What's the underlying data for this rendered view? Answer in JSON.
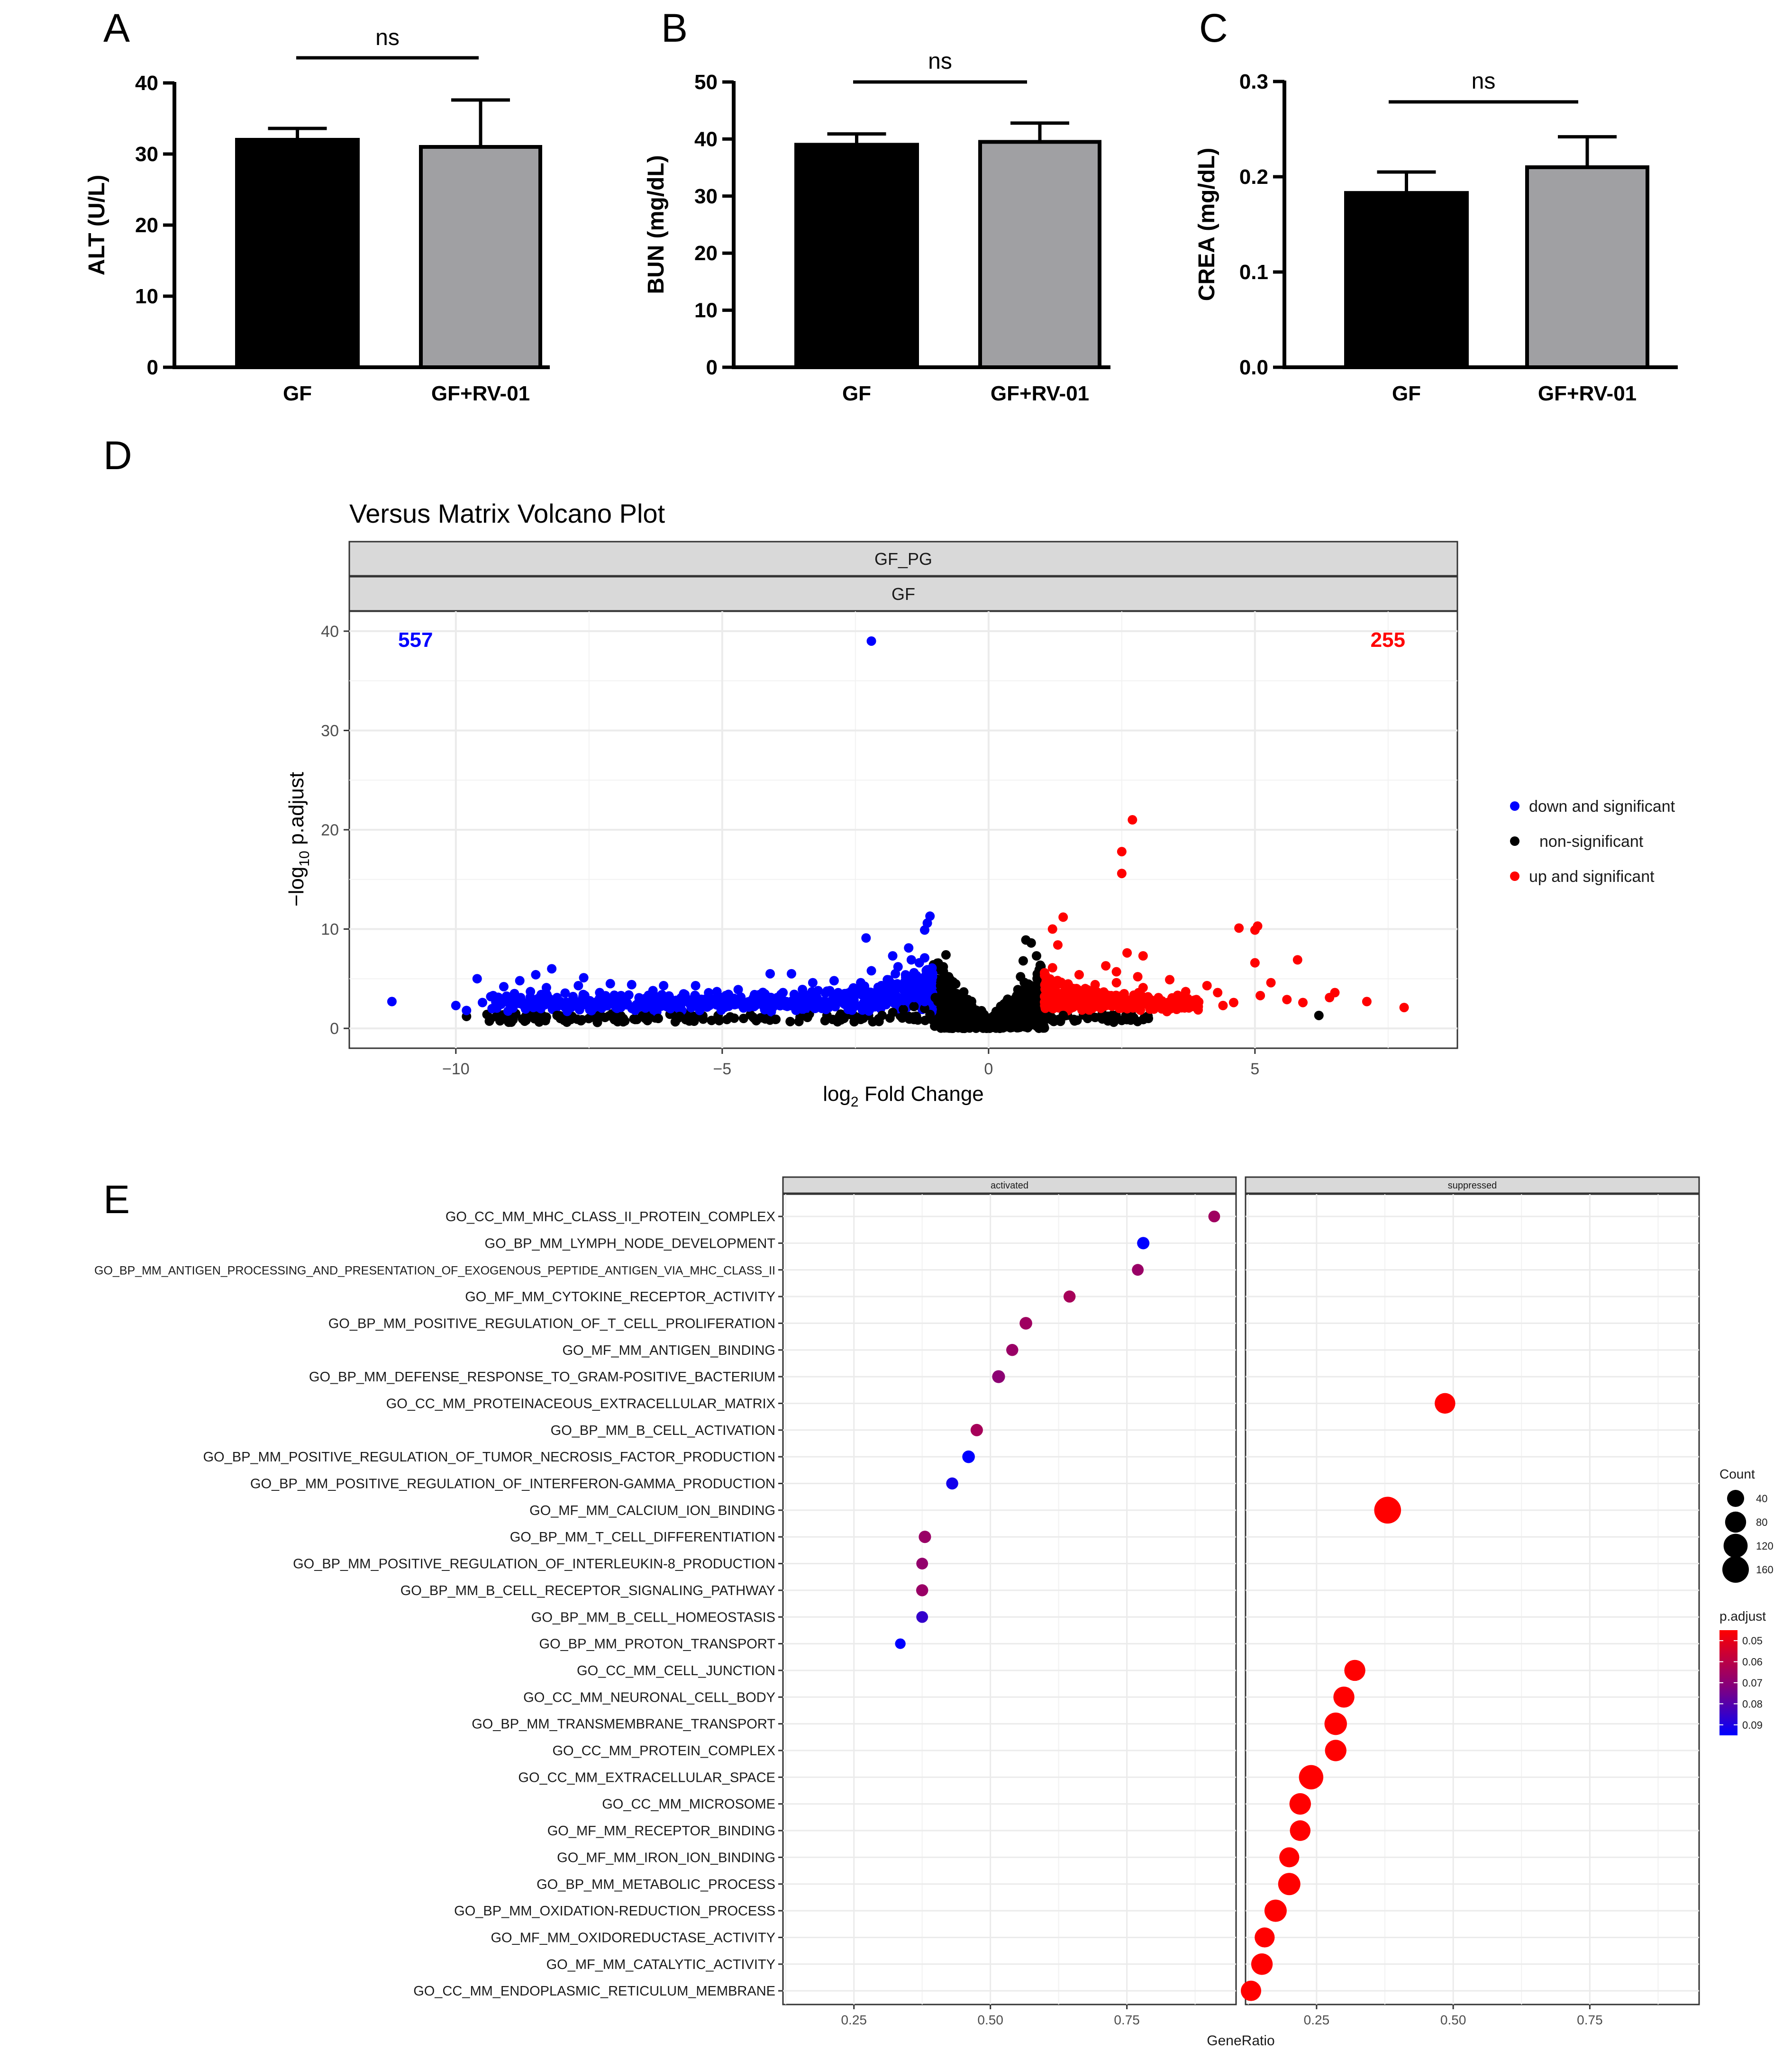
{
  "panels": {
    "A": {
      "letter": "A"
    },
    "B": {
      "letter": "B"
    },
    "C": {
      "letter": "C"
    },
    "D": {
      "letter": "D"
    },
    "E": {
      "letter": "E"
    }
  },
  "colors": {
    "bar_gf": "#000000",
    "bar_rv": "#a0a0a3",
    "down": "#0000ff",
    "nonsig": "#000000",
    "up": "#ff0000",
    "strip_fill": "#d9d9d9",
    "grid": "#ebebeb",
    "padj_low": "#ff0000",
    "padj_high": "#0000ff"
  },
  "chart_data": [
    {
      "panel": "A",
      "type": "bar",
      "categories": [
        "GF",
        "GF+RV-01"
      ],
      "values": [
        32,
        31
      ],
      "errors": [
        1.6,
        6.6
      ],
      "ylabel": "ALT (U/L)",
      "ylim": [
        0,
        40
      ],
      "yticks": [
        0,
        10,
        20,
        30,
        40
      ],
      "significance": "ns"
    },
    {
      "panel": "B",
      "type": "bar",
      "categories": [
        "GF",
        "GF+RV-01"
      ],
      "values": [
        39,
        39.5
      ],
      "errors": [
        1.9,
        3.3
      ],
      "ylabel": "BUN (mg/dL)",
      "ylim": [
        0,
        50
      ],
      "yticks": [
        0,
        10,
        20,
        30,
        40,
        50
      ],
      "significance": "ns"
    },
    {
      "panel": "C",
      "type": "bar",
      "categories": [
        "GF",
        "GF+RV-01"
      ],
      "values": [
        0.183,
        0.21
      ],
      "errors": [
        0.022,
        0.032
      ],
      "ylabel": "CREA (mg/dL)",
      "ylim": [
        0,
        0.3
      ],
      "yticks": [
        "0.0",
        "0.1",
        "0.2",
        "0.3"
      ],
      "significance": "ns"
    },
    {
      "panel": "D",
      "type": "scatter",
      "title": "Versus Matrix Volcano Plot",
      "strips": [
        "GF_PG",
        "GF"
      ],
      "xlabel_main": "log",
      "xlabel_sub": "2",
      "xlabel_rest": " Fold Change",
      "ylabel_pre": "−log",
      "ylabel_sub": "10",
      "ylabel_rest": " p.adjust",
      "xlim": [
        -12,
        8.8
      ],
      "ylim": [
        -2,
        42
      ],
      "xticks": [
        -10,
        -5,
        0,
        5
      ],
      "xtick_labels": [
        "−10",
        "−5",
        "0",
        "5"
      ],
      "yticks": [
        0,
        10,
        20,
        30,
        40
      ],
      "down_count": "557",
      "up_count": "255",
      "legend": [
        "down and significant",
        "non-significant",
        "up and significant"
      ],
      "down_points": [
        [
          -2.2,
          39
        ],
        [
          -11.2,
          2.7
        ],
        [
          -10,
          2.3
        ],
        [
          -9.8,
          1.8
        ],
        [
          -9.5,
          2.6
        ],
        [
          -9.6,
          5
        ],
        [
          -9.3,
          3.3
        ],
        [
          -9.1,
          4.2
        ],
        [
          -9,
          3
        ],
        [
          -8.8,
          4.8
        ],
        [
          -8.7,
          2.5
        ],
        [
          -8.6,
          3.7
        ],
        [
          -8.5,
          5.4
        ],
        [
          -8.3,
          4.1
        ],
        [
          -8.2,
          6
        ],
        [
          -8.1,
          3.1
        ],
        [
          -7.9,
          2.4
        ],
        [
          -7.7,
          4.3
        ],
        [
          -7.6,
          5.1
        ],
        [
          -7.5,
          2.7
        ],
        [
          -7.3,
          3.6
        ],
        [
          -7.1,
          4.5
        ],
        [
          -7,
          2.9
        ],
        [
          -6.9,
          3.3
        ],
        [
          -6.7,
          4.4
        ],
        [
          -6.5,
          2.2
        ],
        [
          -6.3,
          3.8
        ],
        [
          -6.1,
          4.3
        ],
        [
          -5.9,
          2.6
        ],
        [
          -5.7,
          3.4
        ],
        [
          -5.5,
          4.3
        ],
        [
          -5.3,
          2.9
        ],
        [
          -5.1,
          3.7
        ],
        [
          -4.9,
          2.3
        ],
        [
          -4.7,
          3.9
        ],
        [
          -4.5,
          2.6
        ],
        [
          -4.3,
          3.4
        ],
        [
          -4.1,
          5.5
        ],
        [
          -3.9,
          2.9
        ],
        [
          -3.7,
          5.5
        ],
        [
          -3.5,
          3.3
        ],
        [
          -3.3,
          4.6
        ],
        [
          -3.1,
          2.7
        ],
        [
          -2.9,
          4.8
        ],
        [
          -2.8,
          3.1
        ],
        [
          -2.5,
          3.8
        ],
        [
          -2.4,
          4.6
        ],
        [
          -2.2,
          5.8
        ],
        [
          -2.1,
          3.3
        ],
        [
          -2.3,
          9.1
        ],
        [
          -1.9,
          4.9
        ],
        [
          -1.8,
          7.3
        ],
        [
          -1.7,
          6.2
        ],
        [
          -1.6,
          3.9
        ],
        [
          -1.5,
          8.1
        ],
        [
          -1.4,
          5.6
        ],
        [
          -1.3,
          6.6
        ],
        [
          -1.2,
          9.9
        ],
        [
          -1.15,
          10.6
        ],
        [
          -1.1,
          11.3
        ],
        [
          -1.3,
          3.6
        ],
        [
          -1.25,
          4.9
        ],
        [
          -1.4,
          3.1
        ],
        [
          -1.6,
          2.8
        ],
        [
          -1.2,
          2.7
        ],
        [
          -1.1,
          3.9
        ],
        [
          -2.6,
          2.5
        ],
        [
          -3.0,
          2.1
        ],
        [
          -3.6,
          2.4
        ],
        [
          -4.4,
          2.2
        ],
        [
          -5.6,
          2.4
        ],
        [
          -6.8,
          2.5
        ],
        [
          -8.0,
          2.3
        ],
        [
          -9.2,
          2.7
        ],
        [
          -7.4,
          2.1
        ],
        [
          -6.0,
          2.1
        ],
        [
          -4.8,
          2.6
        ],
        [
          -2.0,
          2.4
        ],
        [
          -1.7,
          4.1
        ],
        [
          -1.5,
          4.6
        ],
        [
          -1.35,
          5.3
        ],
        [
          -1.2,
          7.1
        ],
        [
          -1.45,
          6.9
        ],
        [
          -1.75,
          5.5
        ],
        [
          -1.9,
          3.6
        ],
        [
          -2.7,
          3.5
        ],
        [
          -3.2,
          3.8
        ],
        [
          -3.8,
          2.7
        ],
        [
          -4.2,
          3.1
        ],
        [
          -5.0,
          2.1
        ],
        [
          -6.4,
          3.1
        ],
        [
          -7.8,
          3.2
        ],
        [
          -8.9,
          3.5
        ]
      ],
      "nonsig_points": [
        [
          -8.5,
          1.0
        ],
        [
          -7.2,
          1.1
        ],
        [
          -6.6,
          0.9
        ],
        [
          -5.8,
          1.2
        ],
        [
          -5.2,
          0.8
        ],
        [
          -4.6,
          1.0
        ],
        [
          -4.0,
          0.9
        ],
        [
          -3.4,
          1.1
        ],
        [
          -2.8,
          1.2
        ],
        [
          -2.4,
          0.9
        ],
        [
          -2.0,
          1.3
        ],
        [
          -1.8,
          1.6
        ],
        [
          -1.6,
          1.9
        ],
        [
          -1.4,
          2.2
        ],
        [
          -1.2,
          2.0
        ],
        [
          -1.0,
          3.1
        ],
        [
          -0.9,
          4.3
        ],
        [
          -0.85,
          6.2
        ],
        [
          -0.8,
          7.4
        ],
        [
          -0.75,
          5.2
        ],
        [
          -0.7,
          4.7
        ],
        [
          -0.6,
          3.5
        ],
        [
          -0.5,
          2.3
        ],
        [
          -0.4,
          1.6
        ],
        [
          -0.3,
          1.0
        ],
        [
          -0.2,
          0.6
        ],
        [
          -0.1,
          0.3
        ],
        [
          0.0,
          0.1
        ],
        [
          0.1,
          0.3
        ],
        [
          0.2,
          0.7
        ],
        [
          0.3,
          1.2
        ],
        [
          0.4,
          1.9
        ],
        [
          0.5,
          3.0
        ],
        [
          0.6,
          5.2
        ],
        [
          0.65,
          6.8
        ],
        [
          0.7,
          8.9
        ],
        [
          0.8,
          8.6
        ],
        [
          0.9,
          7.3
        ],
        [
          0.95,
          5.9
        ],
        [
          0.85,
          4.1
        ],
        [
          0.75,
          2.8
        ],
        [
          1.2,
          1.0
        ],
        [
          1.6,
          0.9
        ],
        [
          2.0,
          1.1
        ],
        [
          2.5,
          0.8
        ],
        [
          3.0,
          1.0
        ],
        [
          -9.2,
          1.1
        ],
        [
          -9.8,
          1.2
        ],
        [
          -8.1,
          1.3
        ],
        [
          -6.2,
          1.0
        ],
        [
          6.2,
          1.3
        ],
        [
          -1.1,
          1.4
        ],
        [
          -0.95,
          2.7
        ],
        [
          0.55,
          3.9
        ],
        [
          1.4,
          1.3
        ]
      ],
      "up_points": [
        [
          2.7,
          21.0
        ],
        [
          2.5,
          17.8
        ],
        [
          2.5,
          15.6
        ],
        [
          1.4,
          11.2
        ],
        [
          1.2,
          10.0
        ],
        [
          1.3,
          8.4
        ],
        [
          2.6,
          7.6
        ],
        [
          2.9,
          7.3
        ],
        [
          2.2,
          6.3
        ],
        [
          2.8,
          5.2
        ],
        [
          3.4,
          4.9
        ],
        [
          2.4,
          4.6
        ],
        [
          2.0,
          4.4
        ],
        [
          1.6,
          4.0
        ],
        [
          1.8,
          3.6
        ],
        [
          2.3,
          3.3
        ],
        [
          3.0,
          3.1
        ],
        [
          3.5,
          2.6
        ],
        [
          3.9,
          2.9
        ],
        [
          4.1,
          4.3
        ],
        [
          4.3,
          3.6
        ],
        [
          4.6,
          2.6
        ],
        [
          4.7,
          10.1
        ],
        [
          5.0,
          9.9
        ],
        [
          5.05,
          10.3
        ],
        [
          5.0,
          6.6
        ],
        [
          5.3,
          4.6
        ],
        [
          5.1,
          3.3
        ],
        [
          5.6,
          2.9
        ],
        [
          5.8,
          6.9
        ],
        [
          5.9,
          2.6
        ],
        [
          6.5,
          3.6
        ],
        [
          6.4,
          3.1
        ],
        [
          7.1,
          2.7
        ],
        [
          7.8,
          2.1
        ],
        [
          1.1,
          4.8
        ],
        [
          1.3,
          3.2
        ],
        [
          1.5,
          2.6
        ],
        [
          1.9,
          2.4
        ],
        [
          2.1,
          2.9
        ],
        [
          2.6,
          2.2
        ],
        [
          3.2,
          2.3
        ],
        [
          3.7,
          3.7
        ],
        [
          4.4,
          2.3
        ],
        [
          1.05,
          5.6
        ],
        [
          1.2,
          6.1
        ],
        [
          1.7,
          5.4
        ],
        [
          2.4,
          5.7
        ],
        [
          2.9,
          4.1
        ]
      ],
      "legend_colors": [
        "#0000ff",
        "#000000",
        "#ff0000"
      ]
    },
    {
      "panel": "E",
      "type": "scatter",
      "facets": [
        "activated",
        "suppressed"
      ],
      "xlabel": "GeneRatio",
      "xlim": [
        0.12,
        0.95
      ],
      "xticks": [
        "0.25",
        "0.50",
        "0.75"
      ],
      "terms": [
        "GO_CC_MM_MHC_CLASS_II_PROTEIN_COMPLEX",
        "GO_BP_MM_LYMPH_NODE_DEVELOPMENT",
        "GO_BP_MM_ANTIGEN_PROCESSING_AND_PRESENTATION_OF_EXOGENOUS_PEPTIDE_ANTIGEN_VIA_MHC_CLASS_II",
        "GO_MF_MM_CYTOKINE_RECEPTOR_ACTIVITY",
        "GO_BP_MM_POSITIVE_REGULATION_OF_T_CELL_PROLIFERATION",
        "GO_MF_MM_ANTIGEN_BINDING",
        "GO_BP_MM_DEFENSE_RESPONSE_TO_GRAM-POSITIVE_BACTERIUM",
        "GO_CC_MM_PROTEINACEOUS_EXTRACELLULAR_MATRIX",
        "GO_BP_MM_B_CELL_ACTIVATION",
        "GO_BP_MM_POSITIVE_REGULATION_OF_TUMOR_NECROSIS_FACTOR_PRODUCTION",
        "GO_BP_MM_POSITIVE_REGULATION_OF_INTERFERON-GAMMA_PRODUCTION",
        "GO_MF_MM_CALCIUM_ION_BINDING",
        "GO_BP_MM_T_CELL_DIFFERENTIATION",
        "GO_BP_MM_POSITIVE_REGULATION_OF_INTERLEUKIN-8_PRODUCTION",
        "GO_BP_MM_B_CELL_RECEPTOR_SIGNALING_PATHWAY",
        "GO_BP_MM_B_CELL_HOMEOSTASIS",
        "GO_BP_MM_PROTON_TRANSPORT",
        "GO_CC_MM_CELL_JUNCTION",
        "GO_CC_MM_NEURONAL_CELL_BODY",
        "GO_BP_MM_TRANSMEMBRANE_TRANSPORT",
        "GO_CC_MM_PROTEIN_COMPLEX",
        "GO_CC_MM_EXTRACELLULAR_SPACE",
        "GO_CC_MM_MICROSOME",
        "GO_MF_MM_RECEPTOR_BINDING",
        "GO_MF_MM_IRON_ION_BINDING",
        "GO_BP_MM_METABOLIC_PROCESS",
        "GO_BP_MM_OXIDATION-REDUCTION_PROCESS",
        "GO_MF_MM_OXIDOREDUCTASE_ACTIVITY",
        "GO_MF_MM_CATALYTIC_ACTIVITY",
        "GO_CC_MM_ENDOPLASMIC_RETICULUM_MEMBRANE"
      ],
      "points": [
        {
          "facet": "activated",
          "term": 0,
          "ratio": 0.91,
          "count": 10,
          "padj": 0.065
        },
        {
          "facet": "activated",
          "term": 1,
          "ratio": 0.78,
          "count": 12,
          "padj": 0.09
        },
        {
          "facet": "activated",
          "term": 2,
          "ratio": 0.77,
          "count": 10,
          "padj": 0.066
        },
        {
          "facet": "activated",
          "term": 3,
          "ratio": 0.645,
          "count": 11,
          "padj": 0.064
        },
        {
          "facet": "activated",
          "term": 4,
          "ratio": 0.565,
          "count": 13,
          "padj": 0.065
        },
        {
          "facet": "activated",
          "term": 5,
          "ratio": 0.54,
          "count": 11,
          "padj": 0.066
        },
        {
          "facet": "activated",
          "term": 6,
          "ratio": 0.515,
          "count": 14,
          "padj": 0.068
        },
        {
          "facet": "activated",
          "term": 8,
          "ratio": 0.475,
          "count": 12,
          "padj": 0.064
        },
        {
          "facet": "activated",
          "term": 9,
          "ratio": 0.46,
          "count": 13,
          "padj": 0.09
        },
        {
          "facet": "activated",
          "term": 10,
          "ratio": 0.43,
          "count": 11,
          "padj": 0.087
        },
        {
          "facet": "activated",
          "term": 12,
          "ratio": 0.38,
          "count": 12,
          "padj": 0.066
        },
        {
          "facet": "activated",
          "term": 13,
          "ratio": 0.375,
          "count": 10,
          "padj": 0.067
        },
        {
          "facet": "activated",
          "term": 14,
          "ratio": 0.375,
          "count": 11,
          "padj": 0.066
        },
        {
          "facet": "activated",
          "term": 15,
          "ratio": 0.375,
          "count": 10,
          "padj": 0.082
        },
        {
          "facet": "activated",
          "term": 16,
          "ratio": 0.335,
          "count": 7,
          "padj": 0.09
        },
        {
          "facet": "suppressed",
          "term": 7,
          "ratio": 0.485,
          "count": 75,
          "padj": 0.05
        },
        {
          "facet": "suppressed",
          "term": 11,
          "ratio": 0.38,
          "count": 165,
          "padj": 0.05
        },
        {
          "facet": "suppressed",
          "term": 17,
          "ratio": 0.32,
          "count": 80,
          "padj": 0.05
        },
        {
          "facet": "suppressed",
          "term": 18,
          "ratio": 0.3,
          "count": 80,
          "padj": 0.05
        },
        {
          "facet": "suppressed",
          "term": 19,
          "ratio": 0.285,
          "count": 98,
          "padj": 0.05
        },
        {
          "facet": "suppressed",
          "term": 20,
          "ratio": 0.285,
          "count": 85,
          "padj": 0.05
        },
        {
          "facet": "suppressed",
          "term": 21,
          "ratio": 0.24,
          "count": 125,
          "padj": 0.05
        },
        {
          "facet": "suppressed",
          "term": 22,
          "ratio": 0.22,
          "count": 85,
          "padj": 0.05
        },
        {
          "facet": "suppressed",
          "term": 23,
          "ratio": 0.22,
          "count": 75,
          "padj": 0.05
        },
        {
          "facet": "suppressed",
          "term": 24,
          "ratio": 0.2,
          "count": 68,
          "padj": 0.05
        },
        {
          "facet": "suppressed",
          "term": 25,
          "ratio": 0.2,
          "count": 95,
          "padj": 0.05
        },
        {
          "facet": "suppressed",
          "term": 26,
          "ratio": 0.175,
          "count": 95,
          "padj": 0.05
        },
        {
          "facet": "suppressed",
          "term": 27,
          "ratio": 0.155,
          "count": 68,
          "padj": 0.05
        },
        {
          "facet": "suppressed",
          "term": 28,
          "ratio": 0.15,
          "count": 85,
          "padj": 0.05
        },
        {
          "facet": "suppressed",
          "term": 29,
          "ratio": 0.13,
          "count": 72,
          "padj": 0.05
        }
      ],
      "count_legend": {
        "title": "Count",
        "values": [
          40,
          80,
          120,
          160
        ]
      },
      "padj_legend": {
        "title": "p.adjust",
        "ticks": [
          "0.05",
          "0.06",
          "0.07",
          "0.08",
          "0.09"
        ],
        "range": [
          0.045,
          0.095
        ]
      }
    }
  ]
}
